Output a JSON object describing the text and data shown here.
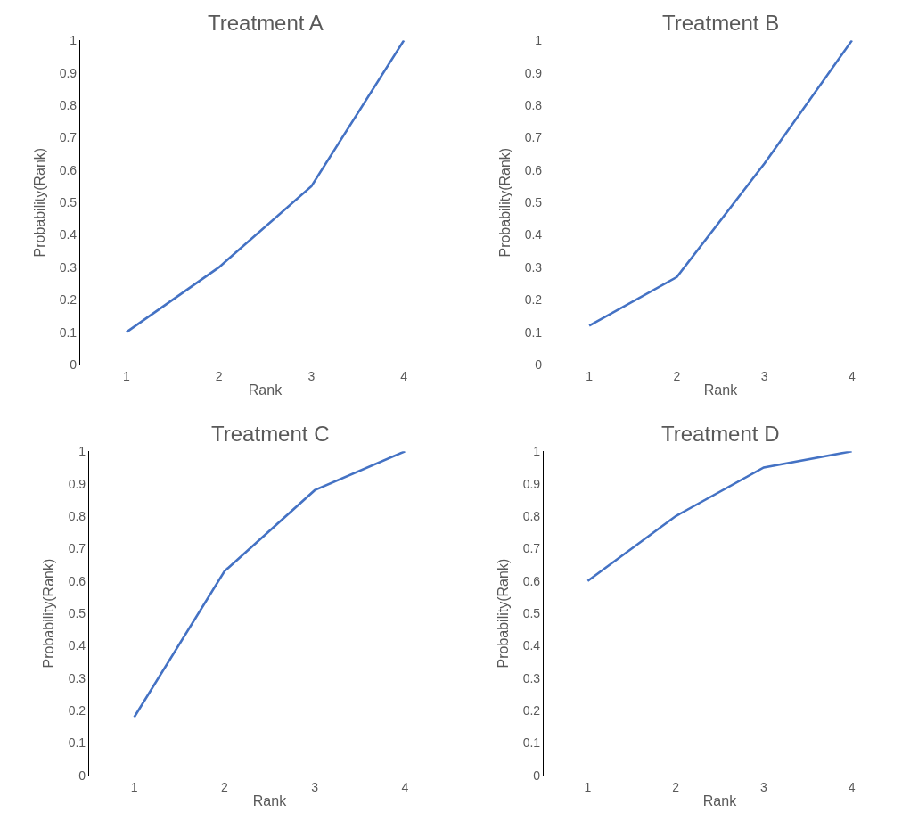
{
  "chart_data": [
    {
      "type": "line",
      "title": "Treatment A",
      "xlabel": "Rank",
      "ylabel": "Probability(Rank)",
      "categories": [
        "1",
        "2",
        "3",
        "4"
      ],
      "series": [
        {
          "color": "#4472c4",
          "values": [
            0.1,
            0.3,
            0.55,
            1.0
          ]
        }
      ],
      "ylim": [
        0,
        1
      ],
      "yticks": [
        0,
        0.1,
        0.2,
        0.3,
        0.4,
        0.5,
        0.6,
        0.7,
        0.8,
        0.9,
        1
      ],
      "marker": "none",
      "line_style": "solid"
    },
    {
      "type": "line",
      "title": "Treatment B",
      "xlabel": "Rank",
      "ylabel": "Probability(Rank)",
      "categories": [
        "1",
        "2",
        "3",
        "4"
      ],
      "series": [
        {
          "color": "#4472c4",
          "values": [
            0.12,
            0.27,
            0.62,
            1.0
          ]
        }
      ],
      "ylim": [
        0,
        1
      ],
      "yticks": [
        0,
        0.1,
        0.2,
        0.3,
        0.4,
        0.5,
        0.6,
        0.7,
        0.8,
        0.9,
        1
      ],
      "marker": "none",
      "line_style": "solid"
    },
    {
      "type": "line",
      "title": "Treatment C",
      "xlabel": "Rank",
      "ylabel": "Probability(Rank)",
      "categories": [
        "1",
        "2",
        "3",
        "4"
      ],
      "series": [
        {
          "color": "#4472c4",
          "values": [
            0.18,
            0.63,
            0.88,
            1.0
          ]
        }
      ],
      "ylim": [
        0,
        1
      ],
      "yticks": [
        0,
        0.1,
        0.2,
        0.3,
        0.4,
        0.5,
        0.6,
        0.7,
        0.8,
        0.9,
        1
      ],
      "marker": "none",
      "line_style": "solid"
    },
    {
      "type": "line",
      "title": "Treatment D",
      "xlabel": "Rank",
      "ylabel": "Probability(Rank)",
      "categories": [
        "1",
        "2",
        "3",
        "4"
      ],
      "series": [
        {
          "color": "#4472c4",
          "values": [
            0.6,
            0.8,
            0.95,
            1.0
          ]
        }
      ],
      "ylim": [
        0,
        1
      ],
      "yticks": [
        0,
        0.1,
        0.2,
        0.3,
        0.4,
        0.5,
        0.6,
        0.7,
        0.8,
        0.9,
        1
      ],
      "marker": "none",
      "line_style": "solid"
    }
  ]
}
